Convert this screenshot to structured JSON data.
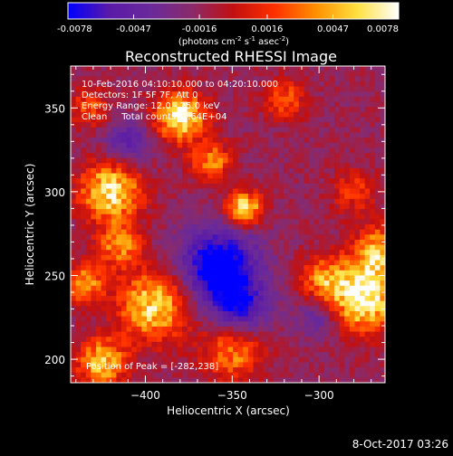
{
  "chart_data": {
    "type": "heatmap",
    "title": "Reconstructed RHESSI Image",
    "xlabel": "Heliocentric X (arcsec)",
    "ylabel": "Heliocentric Y (arcsec)",
    "xlim": [
      -443,
      -262
    ],
    "ylim": [
      186,
      375
    ],
    "x_ticks": [
      -400,
      -350,
      -300
    ],
    "y_ticks": [
      200,
      250,
      300,
      350
    ],
    "colorbar": {
      "vmin": -0.0078,
      "vmax": 0.0078,
      "tick_values": [
        -0.0078,
        -0.0047,
        -0.0016,
        0.0016,
        0.0047,
        0.0078
      ],
      "tick_labels": [
        "-0.0078",
        "-0.0047",
        "-0.0016",
        "0.0016",
        "0.0047",
        "0.0078"
      ],
      "units_label": "(photons cm",
      "units_exp1": "-2",
      "units_mid": " s",
      "units_exp2": "-1",
      "units_mid2": " asec",
      "units_exp3": "-2",
      "units_close": ")",
      "colors": [
        "#0000ff",
        "#5a1aa8",
        "#6a2a9a",
        "#8a2a6a",
        "#c21010",
        "#ff3000",
        "#ff9000",
        "#ffe040",
        "#ffffff"
      ]
    },
    "annotations": [
      "10-Feb-2016 04:10:10.000 to 04:20:10.000",
      "Detectors: 1F 5F 7F, Att 0",
      "Energy Range: 12.0 - 25.0 keV",
      "Clean     Total counts: 1.64E+04"
    ],
    "peak_label": "Position of Peak = [-282,238]",
    "sources": [
      {
        "x": -275,
        "y": 238,
        "sigma": 14,
        "amp": 1.0
      },
      {
        "x": -265,
        "y": 265,
        "sigma": 10,
        "amp": 0.6
      },
      {
        "x": -298,
        "y": 248,
        "sigma": 9,
        "amp": 0.45
      },
      {
        "x": -380,
        "y": 345,
        "sigma": 10,
        "amp": 0.95
      },
      {
        "x": -362,
        "y": 318,
        "sigma": 8,
        "amp": 0.55
      },
      {
        "x": -343,
        "y": 290,
        "sigma": 7,
        "amp": 0.85
      },
      {
        "x": -420,
        "y": 300,
        "sigma": 12,
        "amp": 0.85
      },
      {
        "x": -415,
        "y": 268,
        "sigma": 9,
        "amp": 0.55
      },
      {
        "x": -395,
        "y": 232,
        "sigma": 14,
        "amp": 0.8
      },
      {
        "x": -435,
        "y": 245,
        "sigma": 8,
        "amp": 0.6
      },
      {
        "x": -425,
        "y": 198,
        "sigma": 10,
        "amp": 0.7
      },
      {
        "x": -350,
        "y": 205,
        "sigma": 12,
        "amp": 0.55
      },
      {
        "x": -320,
        "y": 355,
        "sigma": 8,
        "amp": 0.45
      },
      {
        "x": -280,
        "y": 300,
        "sigma": 9,
        "amp": 0.35
      },
      {
        "x": -432,
        "y": 350,
        "sigma": 8,
        "amp": 0.4
      }
    ],
    "dark_sources": [
      {
        "x": -358,
        "y": 255,
        "sigma": 16,
        "amp": 0.8
      },
      {
        "x": -345,
        "y": 230,
        "sigma": 12,
        "amp": 0.5
      },
      {
        "x": -410,
        "y": 330,
        "sigma": 10,
        "amp": 0.4
      },
      {
        "x": -300,
        "y": 225,
        "sigma": 9,
        "amp": 0.35
      }
    ]
  },
  "timestamp": "8-Oct-2017 03:26"
}
